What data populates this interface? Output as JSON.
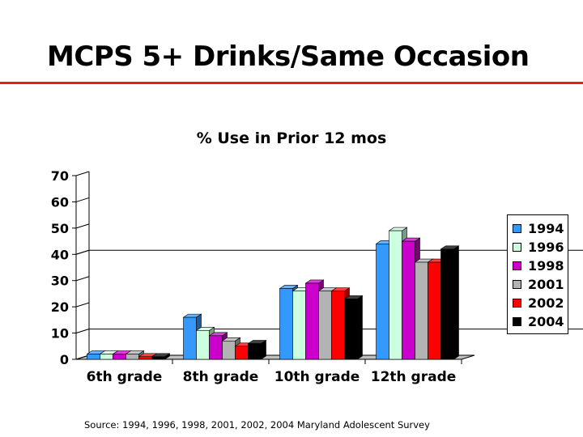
{
  "slide": {
    "title": "MCPS 5+ Drinks/Same Occasion",
    "source": "Source: 1994, 1996, 1998, 2001, 2002, 2004 Maryland Adolescent Survey"
  },
  "chart_data": {
    "type": "bar",
    "title": "% Use in Prior 12 mos",
    "xlabel": "",
    "ylabel": "",
    "categories": [
      "6th grade",
      "8th grade",
      "10th grade",
      "12th grade"
    ],
    "yticks": [
      "0",
      "10",
      "20",
      "30",
      "40",
      "50",
      "60",
      "70"
    ],
    "ylim": [
      0,
      70
    ],
    "grid": false,
    "legend_position": "right",
    "series": [
      {
        "name": "1994",
        "color": "#3399ff",
        "values": [
          2,
          16,
          27,
          44
        ]
      },
      {
        "name": "1996",
        "color": "#ccffe0",
        "values": [
          2,
          11,
          26,
          49
        ]
      },
      {
        "name": "1998",
        "color": "#cc00cc",
        "values": [
          2,
          9,
          29,
          45
        ]
      },
      {
        "name": "2001",
        "color": "#b3b3b3",
        "values": [
          2,
          7,
          26,
          37
        ]
      },
      {
        "name": "2002",
        "color": "#ff0000",
        "values": [
          1,
          5,
          26,
          37
        ]
      },
      {
        "name": "2004",
        "color": "#000000",
        "values": [
          1,
          6,
          23,
          42
        ]
      }
    ]
  }
}
